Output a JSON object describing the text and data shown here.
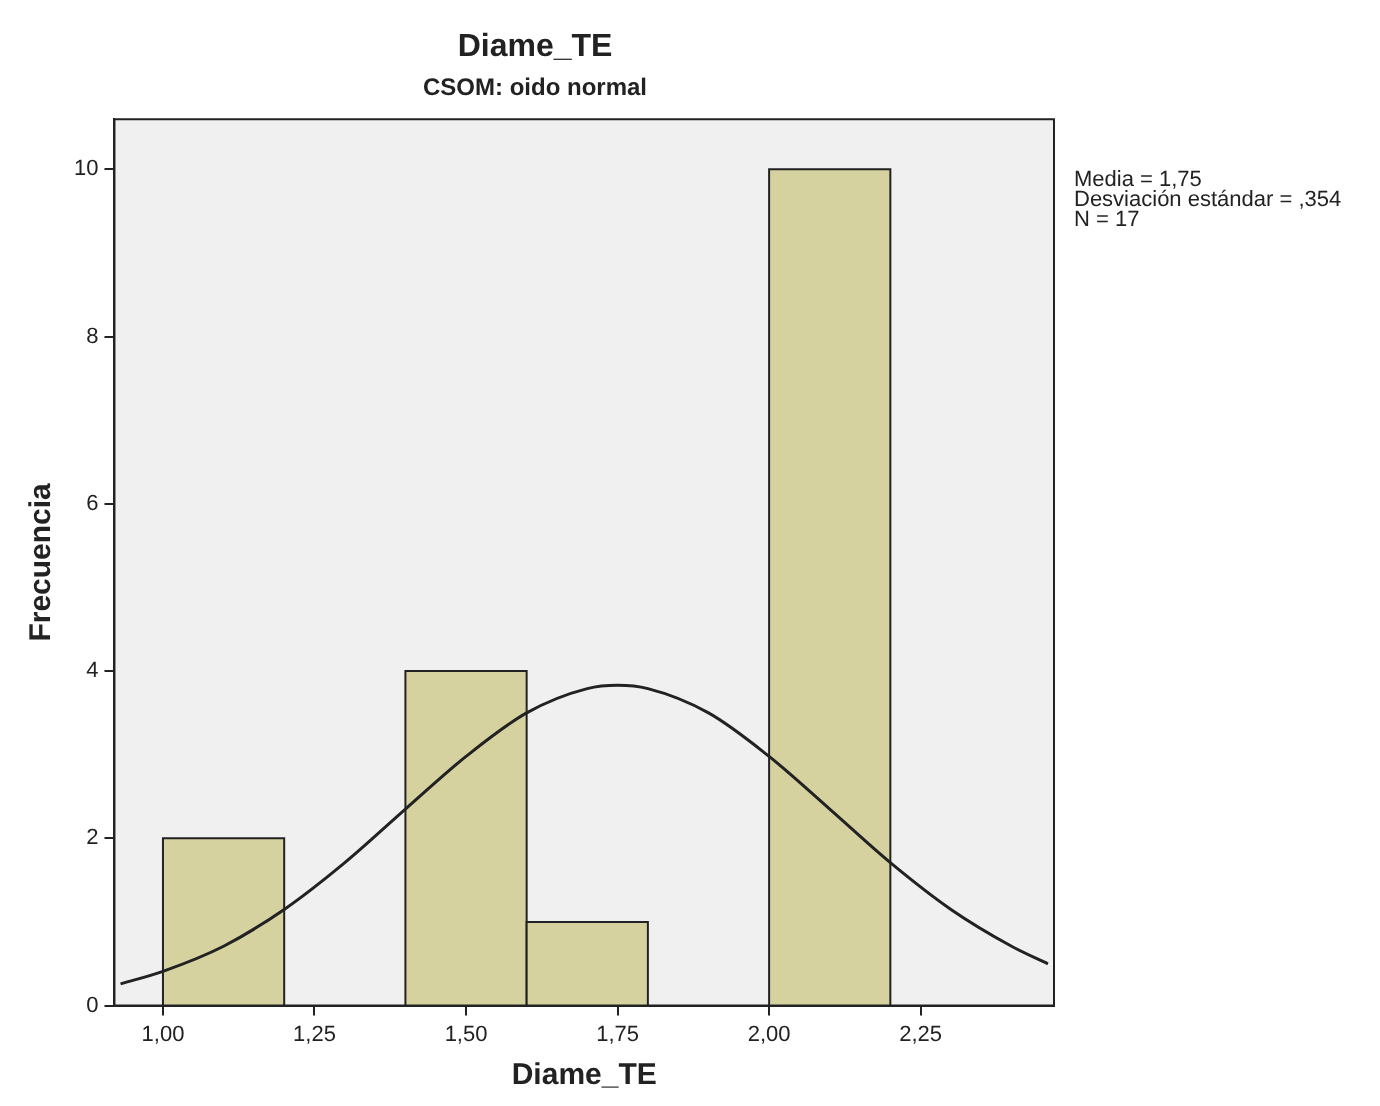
{
  "chart_data": {
    "type": "histogram",
    "title": "Diame_TE",
    "subtitle": "CSOM: oido normal",
    "xlabel": "Diame_TE",
    "ylabel": "Frecuencia",
    "bins": [
      1.0,
      1.2,
      1.4,
      1.6,
      1.8,
      2.0,
      2.2
    ],
    "values": [
      2,
      0,
      4,
      1,
      0,
      10
    ],
    "color": "#d6d2a0",
    "series": [
      {
        "type": "line",
        "color": "#222222",
        "x": [
          0.93,
          1.0,
          1.1,
          1.2,
          1.3,
          1.4,
          1.5,
          1.6,
          1.7,
          1.75,
          1.8,
          1.9,
          2.0,
          2.1,
          2.2,
          2.3,
          2.4,
          2.46
        ],
        "values": [
          0.26,
          0.41,
          0.71,
          1.15,
          1.71,
          2.35,
          2.98,
          3.5,
          3.79,
          3.83,
          3.79,
          3.5,
          2.98,
          2.35,
          1.71,
          1.15,
          0.71,
          0.5
        ]
      }
    ],
    "xlim": [
      0.92,
      2.47
    ],
    "xticks": [
      {
        "value": 1.0,
        "label": "1,00"
      },
      {
        "value": 1.25,
        "label": "1,25"
      },
      {
        "value": 1.5,
        "label": "1,50"
      },
      {
        "value": 1.75,
        "label": "1,75"
      },
      {
        "value": 2.0,
        "label": "2,00"
      },
      {
        "value": 2.25,
        "label": "2,25"
      }
    ],
    "ylim": [
      0,
      10.6
    ],
    "yticks": [
      0,
      2,
      4,
      6,
      8,
      10
    ],
    "grid": false,
    "legend": false,
    "annotations": [
      "Media = 1,75",
      "Desviación estándar = ,354",
      "N = 17"
    ]
  }
}
